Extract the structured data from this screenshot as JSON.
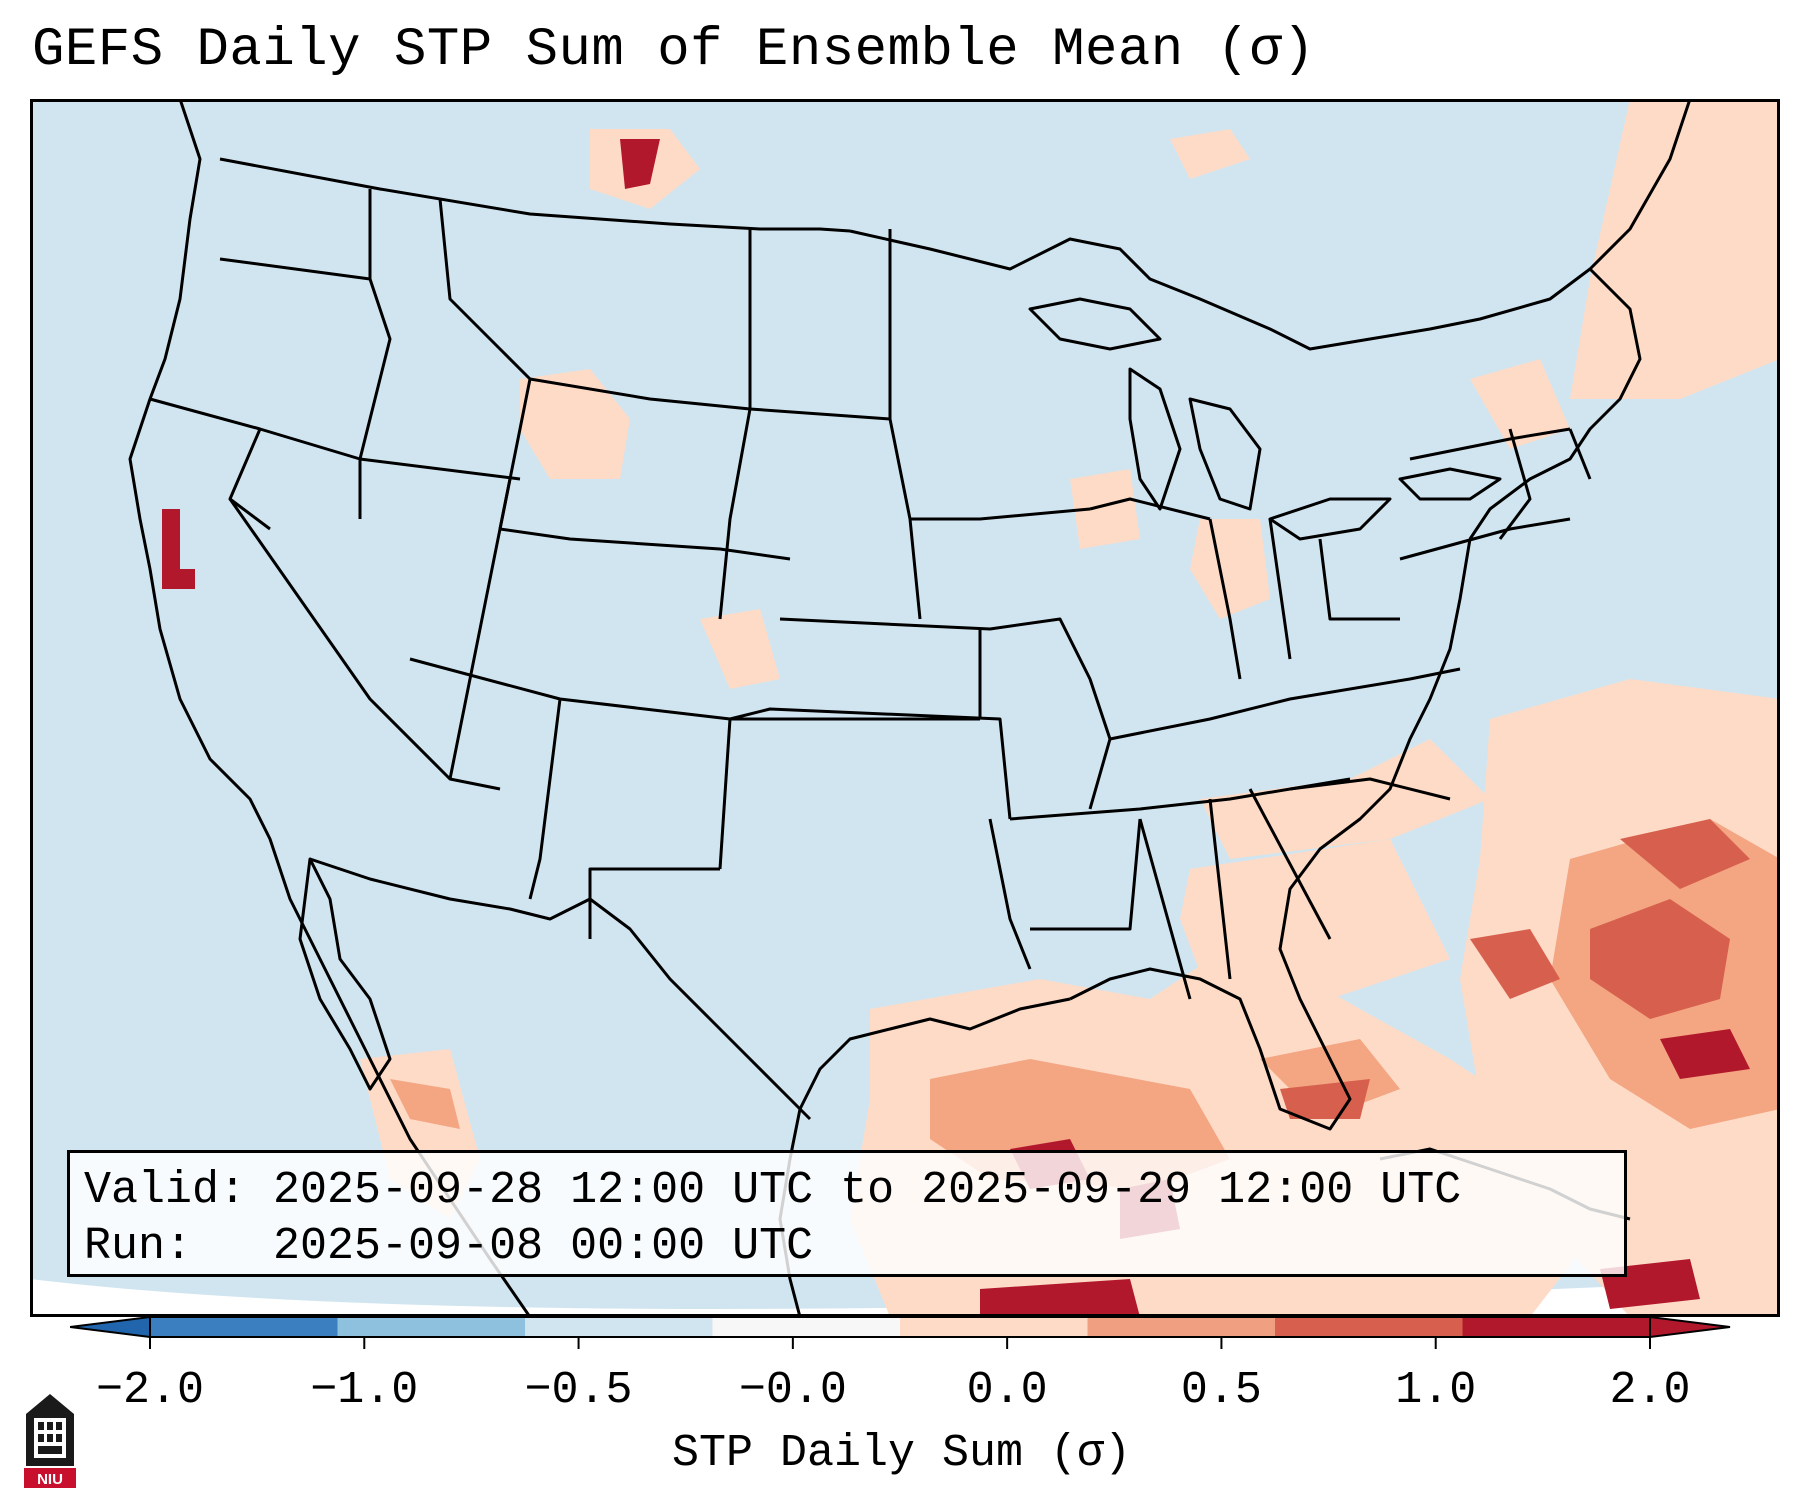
{
  "title": "GEFS Daily STP Sum of Ensemble Mean (σ)",
  "info": {
    "valid_line": "Valid: 2025-09-28 12:00 UTC to 2025-09-29 12:00 UTC",
    "run_line": "Run:   2025-09-08 00:00 UTC"
  },
  "colorbar": {
    "label": "STP Daily Sum (σ)",
    "ticks": [
      "−2.0",
      "−1.0",
      "−0.5",
      "−0.0",
      "0.0",
      "0.5",
      "1.0",
      "2.0"
    ],
    "colors": [
      "#3b7fc0",
      "#8dc1dd",
      "#d1e5f0",
      "#f7f7f7",
      "#fddbc7",
      "#f0a080",
      "#d6604d",
      "#b2182b"
    ],
    "extend_low_color": "#2166ac",
    "extend_high_color": "#b2182b"
  },
  "map": {
    "background_color": "#d1e5f0",
    "colors": {
      "low": "#fddbc7",
      "moderate": "#f4a582",
      "high": "#d6604d",
      "extreme": "#b2182b"
    }
  },
  "logo": {
    "text": "NIU"
  }
}
